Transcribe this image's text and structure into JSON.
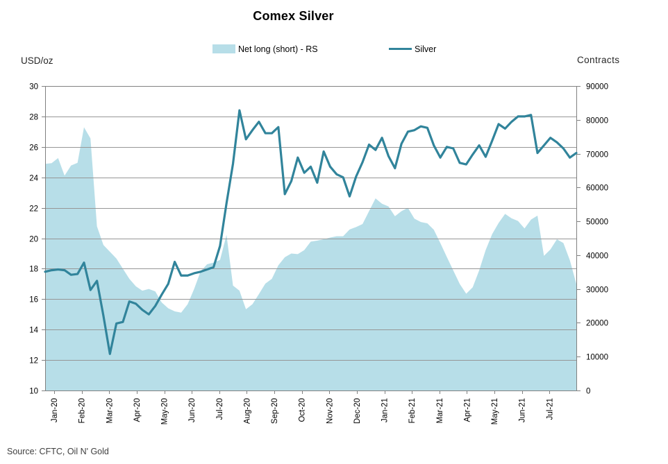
{
  "title": "Comex Silver",
  "legend": [
    {
      "label": "Net long (short) - RS",
      "swatch": "area-swatch"
    },
    {
      "label": "Silver",
      "swatch": "line-swatch"
    }
  ],
  "left_axis": {
    "title": "USD/oz",
    "ticks": [
      30,
      28,
      26,
      24,
      22,
      20,
      18,
      16,
      14,
      12,
      10
    ]
  },
  "right_axis": {
    "title": "Contracts",
    "ticks": [
      90000,
      80000,
      70000,
      60000,
      50000,
      40000,
      30000,
      20000,
      10000,
      0
    ]
  },
  "source": "Source: CFTC, Oil N' Gold",
  "colors": {
    "area": "#B7DEE8",
    "line": "#31849B",
    "gridline": "#969696",
    "border": "#808080",
    "tick": "#808080",
    "tick_text": "#000000"
  },
  "chart_data": {
    "type": "area+line combo, weekly data",
    "title": "Comex Silver",
    "x_labels": [
      "Jan-20",
      "Feb-20",
      "Mar-20",
      "Apr-20",
      "May-20",
      "Jun-20",
      "Jul-20",
      "Aug-20",
      "Sep-20",
      "Oct-20",
      "Nov-20",
      "Dec-20",
      "Jan-21",
      "Feb-21",
      "Mar-21",
      "Apr-21",
      "May-21",
      "Jun-21",
      "Jul-21"
    ],
    "left_ylim": [
      10,
      30
    ],
    "right_ylim": [
      0,
      90000
    ],
    "grid": true,
    "legend_position": "top",
    "series": [
      {
        "name": "Net long (short) - RS",
        "type": "area",
        "axis": "right",
        "unit": "contracts",
        "values": [
          67000,
          67200,
          68700,
          63500,
          66500,
          67300,
          77800,
          74500,
          48500,
          43000,
          41000,
          39000,
          36000,
          33000,
          30800,
          29500,
          30000,
          29300,
          26000,
          24300,
          23400,
          23000,
          25500,
          30000,
          35200,
          37300,
          37800,
          38600,
          46000,
          31000,
          29500,
          24000,
          25500,
          28500,
          31600,
          33000,
          37000,
          39400,
          40500,
          40300,
          41500,
          44000,
          44300,
          44700,
          45200,
          45600,
          45600,
          47600,
          48300,
          49200,
          53000,
          56800,
          55200,
          54400,
          51500,
          53000,
          54000,
          50800,
          49800,
          49400,
          47500,
          43600,
          39500,
          35500,
          31500,
          28600,
          30500,
          35500,
          41500,
          46200,
          49500,
          52200,
          50900,
          50100,
          47900,
          50500,
          51700,
          39800,
          41700,
          44700,
          43600,
          38500,
          31500
        ]
      },
      {
        "name": "Silver",
        "type": "line",
        "axis": "left",
        "unit": "USD/oz",
        "values": [
          17.8,
          17.9,
          17.95,
          17.9,
          17.6,
          17.65,
          18.4,
          16.6,
          17.2,
          14.9,
          12.4,
          14.4,
          14.5,
          15.85,
          15.7,
          15.3,
          15.0,
          15.55,
          16.3,
          17.0,
          18.45,
          17.55,
          17.55,
          17.7,
          17.8,
          17.95,
          18.1,
          19.5,
          22.3,
          24.9,
          28.4,
          26.5,
          27.1,
          27.65,
          26.9,
          26.9,
          27.3,
          22.9,
          23.75,
          25.3,
          24.3,
          24.7,
          23.65,
          25.7,
          24.7,
          24.2,
          24.0,
          22.75,
          24.05,
          25.0,
          26.15,
          25.8,
          26.6,
          25.4,
          24.6,
          26.2,
          27.0,
          27.1,
          27.35,
          27.25,
          26.1,
          25.3,
          26.0,
          25.9,
          24.95,
          24.85,
          25.5,
          26.1,
          25.35,
          26.4,
          27.5,
          27.2,
          27.65,
          28.0,
          28.0,
          28.1,
          25.6,
          26.1,
          26.6,
          26.3,
          25.9,
          25.3,
          25.6
        ]
      }
    ]
  }
}
